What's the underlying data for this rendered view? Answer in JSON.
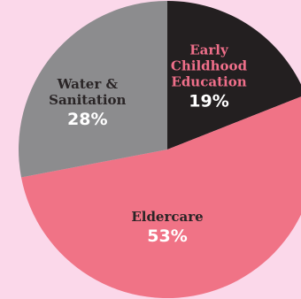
{
  "chart_data": {
    "type": "pie",
    "title": "",
    "start_angle_deg": 0,
    "direction": "clockwise",
    "slices": [
      {
        "label_lines": [
          "Early",
          "Childhood",
          "Education"
        ],
        "value": 19,
        "value_label": "19%",
        "color": "#231f20",
        "label_color": "#ef6f8a",
        "value_color": "#ffffff"
      },
      {
        "label_lines": [
          "Eldercare"
        ],
        "value": 53,
        "value_label": "53%",
        "color": "#f07386",
        "label_color": "#2a2526",
        "value_color": "#ffffff"
      },
      {
        "label_lines": [
          "Water &",
          "Sanitation"
        ],
        "value": 28,
        "value_label": "28%",
        "color": "#8c8c8e",
        "label_color": "#2a2526",
        "value_color": "#ffffff"
      }
    ]
  },
  "colors": {
    "background": "#fbd8ea"
  }
}
